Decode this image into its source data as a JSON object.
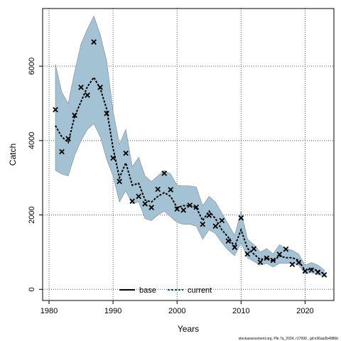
{
  "chart_data": {
    "type": "line",
    "xlabel": "Years",
    "ylabel": "Catch",
    "xlim": [
      1979,
      2024.5
    ],
    "ylim": [
      -300,
      7550
    ],
    "x_ticks": [
      1980,
      1990,
      2000,
      2010,
      2020
    ],
    "y_ticks": [
      0,
      2000,
      4000,
      6000
    ],
    "grid": true,
    "grid_style": "dotted",
    "legend_position": "bottom-center",
    "credit": "stockassessment.org, Ple.7a_2024, r17990 , git:e36aa2b4986b",
    "colors": {
      "band": "#a3c3d4",
      "band_edge": "#7d8a93",
      "base_line": "#000000",
      "current_line": "#005a78",
      "observed": "#000000",
      "grid": "#555555"
    },
    "series": [
      {
        "name": "base",
        "style": "solid",
        "x": [],
        "y": []
      },
      {
        "name": "current",
        "style": "dashed",
        "x": [
          1981,
          1982,
          1983,
          1984,
          1985,
          1986,
          1987,
          1988,
          1989,
          1990,
          1991,
          1992,
          1993,
          1994,
          1995,
          1996,
          1997,
          1998,
          1999,
          2000,
          2001,
          2002,
          2003,
          2004,
          2005,
          2006,
          2007,
          2008,
          2009,
          2010,
          2011,
          2012,
          2013,
          2014,
          2015,
          2016,
          2017,
          2018,
          2019,
          2020,
          2021,
          2022,
          2023
        ],
        "y": [
          4400,
          4100,
          3950,
          4650,
          5050,
          5450,
          5700,
          5400,
          4850,
          3800,
          3000,
          3400,
          2800,
          2850,
          2400,
          2350,
          2500,
          2600,
          2500,
          2200,
          2250,
          2250,
          2200,
          1850,
          2100,
          1900,
          1600,
          1400,
          1150,
          1600,
          1100,
          950,
          800,
          850,
          750,
          900,
          850,
          850,
          780,
          500,
          560,
          500,
          420
        ]
      },
      {
        "name": "observed",
        "style": "points",
        "x": [
          1981,
          1982,
          1983,
          1984,
          1985,
          1986,
          1987,
          1988,
          1989,
          1990,
          1991,
          1992,
          1993,
          1994,
          1995,
          1996,
          1997,
          1998,
          1999,
          2000,
          2001,
          2002,
          2003,
          2004,
          2005,
          2006,
          2007,
          2008,
          2009,
          2010,
          2011,
          2012,
          2013,
          2014,
          2015,
          2016,
          2017,
          2018,
          2019,
          2020,
          2021,
          2022,
          2023
        ],
        "y": [
          4830,
          3700,
          4050,
          4680,
          5430,
          5220,
          6650,
          5430,
          4730,
          3530,
          2900,
          3660,
          2370,
          2500,
          2300,
          2200,
          2690,
          3120,
          2680,
          2160,
          2130,
          2260,
          2210,
          1750,
          1990,
          1700,
          1850,
          1300,
          1130,
          1920,
          950,
          1090,
          730,
          840,
          780,
          940,
          1080,
          670,
          720,
          490,
          520,
          460,
          390
        ]
      }
    ],
    "band": {
      "x": [
        1981,
        1982,
        1983,
        1984,
        1985,
        1986,
        1987,
        1988,
        1989,
        1990,
        1991,
        1992,
        1993,
        1994,
        1995,
        1996,
        1997,
        1998,
        1999,
        2000,
        2001,
        2002,
        2003,
        2004,
        2005,
        2006,
        2007,
        2008,
        2009,
        2010,
        2011,
        2012,
        2013,
        2014,
        2015,
        2016,
        2017,
        2018,
        2019,
        2020,
        2021,
        2022,
        2023
      ],
      "lower": [
        3200,
        3100,
        3050,
        3600,
        4000,
        4300,
        4450,
        4100,
        3500,
        3050,
        2350,
        2650,
        2300,
        2350,
        1900,
        1850,
        2000,
        2100,
        1950,
        1800,
        1750,
        1750,
        1700,
        1350,
        1600,
        1500,
        1250,
        1050,
        900,
        1250,
        850,
        750,
        650,
        700,
        600,
        700,
        700,
        700,
        650,
        420,
        450,
        400,
        350
      ],
      "upper": [
        6050,
        5300,
        5000,
        5850,
        6600,
        7000,
        7350,
        6850,
        6150,
        4800,
        3900,
        4300,
        3300,
        3550,
        3050,
        2900,
        3050,
        3200,
        3100,
        2800,
        2780,
        2780,
        2750,
        2250,
        2500,
        2350,
        2050,
        1750,
        1450,
        2100,
        1350,
        1200,
        1000,
        1100,
        950,
        1200,
        1100,
        1050,
        950,
        650,
        720,
        650,
        520
      ]
    }
  }
}
